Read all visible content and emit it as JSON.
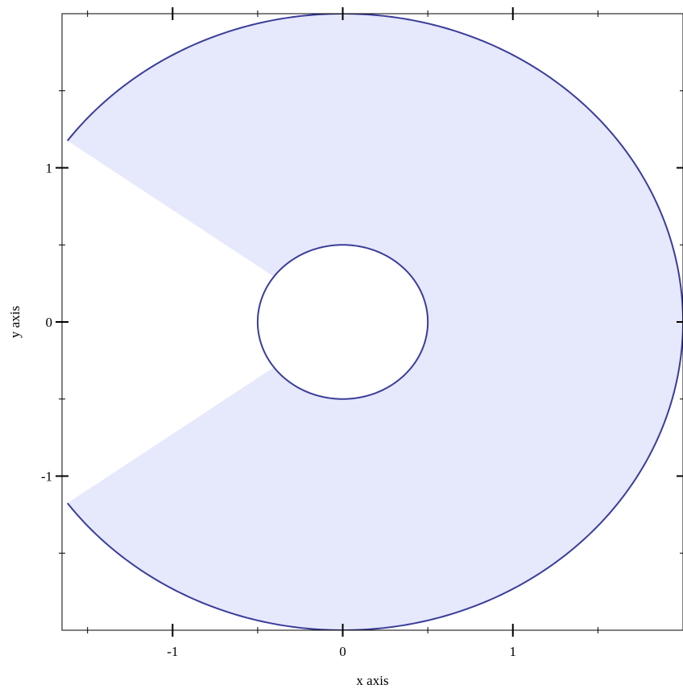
{
  "chart_data": {
    "type": "area",
    "title": "",
    "xlabel": "x axis",
    "ylabel": "y axis",
    "xlim": [
      -1.65,
      2.0
    ],
    "ylim": [
      -2.0,
      2.0
    ],
    "grid": false,
    "shape": "polar-interval",
    "series": [
      {
        "inner_radius": 0.5,
        "outer_radius": 2.0,
        "theta_gap_start_deg": 144,
        "theta_gap_end_deg": 216,
        "fill_color": "#e6e8fc",
        "line_color": "#3a3d99"
      }
    ],
    "x_ticks": [
      {
        "value": -1,
        "label": "-1"
      },
      {
        "value": 0,
        "label": "0"
      },
      {
        "value": 1,
        "label": "1"
      }
    ],
    "y_ticks": [
      {
        "value": 1,
        "label": "1"
      },
      {
        "value": 0,
        "label": "0"
      },
      {
        "value": -1,
        "label": "-1"
      }
    ],
    "x_minor_ticks": [
      -1.5,
      -0.5,
      0.5,
      1.5
    ],
    "y_minor_ticks": [
      1.5,
      0.5,
      -0.5,
      -1.5
    ]
  }
}
